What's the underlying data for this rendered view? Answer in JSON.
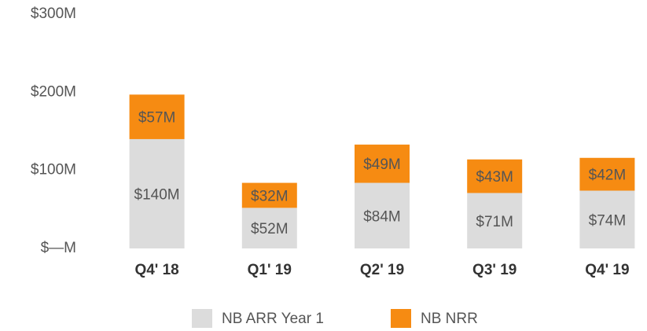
{
  "chart_data": {
    "type": "stacked_bar",
    "categories": [
      "Q4' 18",
      "Q1' 19",
      "Q2' 19",
      "Q3' 19",
      "Q4' 19"
    ],
    "series": [
      {
        "name": "NB ARR Year 1",
        "color": "#dcdcdc",
        "values": [
          140,
          52,
          84,
          71,
          74
        ],
        "value_labels": [
          "$140M",
          "$52M",
          "$84M",
          "$71M",
          "$74M"
        ]
      },
      {
        "name": "NB NRR",
        "color": "#f68b12",
        "values": [
          57,
          32,
          49,
          43,
          42
        ],
        "value_labels": [
          "$57M",
          "$32M",
          "$49M",
          "$43M",
          "$42M"
        ]
      }
    ],
    "ylim": [
      0,
      300
    ],
    "yticks": [
      {
        "value": 0,
        "label": "$—M"
      },
      {
        "value": 100,
        "label": "$100M"
      },
      {
        "value": 200,
        "label": "$200M"
      },
      {
        "value": 300,
        "label": "$300M"
      }
    ],
    "grid": false,
    "legend": "bottom"
  }
}
